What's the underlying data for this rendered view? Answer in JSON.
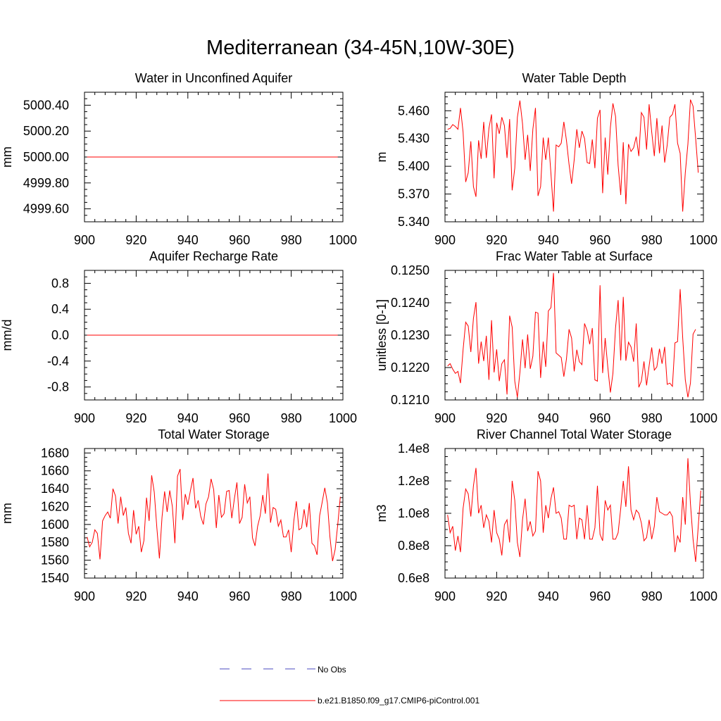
{
  "title": "Mediterranean (34-45N,10W-30E)",
  "colors": {
    "series": "#ff0000",
    "obs": "#4a4ac0",
    "axis": "#000000"
  },
  "legend": {
    "entries": [
      {
        "label": "No Obs",
        "style": "dashed"
      },
      {
        "label": "b.e21.B1850.f09_g17.CMIP6-piControl.001",
        "style": "solid"
      }
    ]
  },
  "chart_data": [
    {
      "type": "line",
      "title": "Water in Unconfined Aquifer",
      "ylabel": "mm",
      "xlim": [
        900,
        1000
      ],
      "ylim": [
        4999.5,
        5000.5
      ],
      "xticks": [
        900,
        920,
        940,
        960,
        980,
        1000
      ],
      "xtick_labels": [
        "900",
        "920",
        "940",
        "960",
        "980",
        "1000"
      ],
      "yticks": [
        4999.6,
        4999.8,
        5000.0,
        5000.2,
        5000.4
      ],
      "ytick_labels": [
        "4999.60",
        "4999.80",
        "5000.00",
        "5000.20",
        "5000.40"
      ],
      "x": [
        901,
        998
      ],
      "values": [
        5000.0,
        5000.0
      ]
    },
    {
      "type": "line",
      "title": "Water Table Depth",
      "ylabel": "m",
      "xlim": [
        900,
        1000
      ],
      "ylim": [
        5.34,
        5.48
      ],
      "xticks": [
        900,
        920,
        940,
        960,
        980,
        1000
      ],
      "xtick_labels": [
        "900",
        "920",
        "940",
        "960",
        "980",
        "1000"
      ],
      "yticks": [
        5.34,
        5.37,
        5.4,
        5.43,
        5.46
      ],
      "ytick_labels": [
        "5.340",
        "5.370",
        "5.400",
        "5.430",
        "5.460"
      ],
      "x_start": 901,
      "values": [
        5.44,
        5.441,
        5.445,
        5.443,
        5.44,
        5.463,
        5.437,
        5.383,
        5.393,
        5.427,
        5.378,
        5.367,
        5.428,
        5.408,
        5.448,
        5.409,
        5.441,
        5.456,
        5.387,
        5.447,
        5.435,
        5.453,
        5.444,
        5.409,
        5.451,
        5.374,
        5.398,
        5.453,
        5.471,
        5.446,
        5.407,
        5.434,
        5.395,
        5.44,
        5.463,
        5.368,
        5.378,
        5.431,
        5.407,
        5.431,
        5.392,
        5.351,
        5.423,
        5.421,
        5.425,
        5.448,
        5.428,
        5.402,
        5.381,
        5.407,
        5.44,
        5.42,
        5.438,
        5.43,
        5.404,
        5.403,
        5.429,
        5.398,
        5.452,
        5.461,
        5.371,
        5.431,
        5.391,
        5.442,
        5.468,
        5.454,
        5.401,
        5.369,
        5.426,
        5.359,
        5.424,
        5.416,
        5.42,
        5.432,
        5.411,
        5.458,
        5.453,
        5.418,
        5.467,
        5.437,
        5.411,
        5.452,
        5.414,
        5.444,
        5.404,
        5.423,
        5.453,
        5.456,
        5.467,
        5.425,
        5.414,
        5.351,
        5.393,
        5.424,
        5.472,
        5.465,
        5.43,
        5.393
      ]
    },
    {
      "type": "line",
      "title": "Aquifer Recharge Rate",
      "ylabel": "mm/d",
      "xlim": [
        900,
        1000
      ],
      "ylim": [
        -1.0,
        1.0
      ],
      "xticks": [
        900,
        920,
        940,
        960,
        980,
        1000
      ],
      "xtick_labels": [
        "900",
        "920",
        "940",
        "960",
        "980",
        "1000"
      ],
      "yticks": [
        -0.8,
        -0.4,
        0.0,
        0.4,
        0.8
      ],
      "ytick_labels": [
        "-0.8",
        "-0.4",
        "0.0",
        "0.4",
        "0.8"
      ],
      "x": [
        901,
        998
      ],
      "values": [
        0.0,
        0.0
      ]
    },
    {
      "type": "line",
      "title": "Frac Water Table at Surface",
      "ylabel": "unitless [0-1]",
      "xlim": [
        900,
        1000
      ],
      "ylim": [
        0.121,
        0.125
      ],
      "xticks": [
        900,
        920,
        940,
        960,
        980,
        1000
      ],
      "xtick_labels": [
        "900",
        "920",
        "940",
        "960",
        "980",
        "1000"
      ],
      "yticks": [
        0.121,
        0.122,
        0.123,
        0.124,
        0.125
      ],
      "ytick_labels": [
        "0.1210",
        "0.1220",
        "0.1230",
        "0.1240",
        "0.1250"
      ],
      "x_start": 901,
      "values": [
        0.12205,
        0.12212,
        0.12195,
        0.12182,
        0.12188,
        0.12152,
        0.12255,
        0.1234,
        0.12328,
        0.12248,
        0.12352,
        0.12402,
        0.12212,
        0.1228,
        0.1222,
        0.12298,
        0.12162,
        0.12346,
        0.12185,
        0.12256,
        0.12158,
        0.12212,
        0.12224,
        0.12117,
        0.1236,
        0.12325,
        0.12158,
        0.12108,
        0.12185,
        0.12287,
        0.12198,
        0.12302,
        0.12196,
        0.12235,
        0.12371,
        0.12368,
        0.12168,
        0.1228,
        0.12202,
        0.12375,
        0.12385,
        0.12492,
        0.12245,
        0.12238,
        0.12231,
        0.12172,
        0.12226,
        0.12318,
        0.12291,
        0.12188,
        0.12255,
        0.12218,
        0.12209,
        0.12336,
        0.12314,
        0.12272,
        0.12322,
        0.12162,
        0.12158,
        0.12454,
        0.12183,
        0.12291,
        0.12202,
        0.12123,
        0.12182,
        0.12322,
        0.12408,
        0.12222,
        0.12418,
        0.12221,
        0.12278,
        0.12264,
        0.12218,
        0.12336,
        0.12139,
        0.12158,
        0.12219,
        0.12145,
        0.12205,
        0.12262,
        0.12192,
        0.12202,
        0.12258,
        0.12212,
        0.12264,
        0.12148,
        0.12152,
        0.12142,
        0.12276,
        0.1228,
        0.12442,
        0.12292,
        0.12162,
        0.12108,
        0.12152,
        0.12303,
        0.12318
      ]
    },
    {
      "type": "line",
      "title": "Total Water Storage",
      "ylabel": "mm",
      "xlim": [
        900,
        1000
      ],
      "ylim": [
        1540,
        1685
      ],
      "xticks": [
        900,
        920,
        940,
        960,
        980,
        1000
      ],
      "xtick_labels": [
        "900",
        "920",
        "940",
        "960",
        "980",
        "1000"
      ],
      "yticks": [
        1540,
        1560,
        1580,
        1600,
        1620,
        1640,
        1660,
        1680
      ],
      "ytick_labels": [
        "1540",
        "1560",
        "1580",
        "1600",
        "1620",
        "1640",
        "1660",
        "1680"
      ],
      "x_start": 901,
      "values": [
        1586,
        1575,
        1580,
        1594,
        1590,
        1561,
        1604,
        1610,
        1614,
        1607,
        1640,
        1632,
        1601,
        1631,
        1610,
        1619,
        1590,
        1579,
        1616,
        1589,
        1598,
        1569,
        1582,
        1630,
        1604,
        1655,
        1636,
        1596,
        1562,
        1608,
        1637,
        1614,
        1638,
        1620,
        1579,
        1654,
        1662,
        1605,
        1634,
        1622,
        1638,
        1652,
        1618,
        1627,
        1609,
        1600,
        1623,
        1631,
        1651,
        1639,
        1596,
        1633,
        1608,
        1612,
        1637,
        1638,
        1607,
        1629,
        1647,
        1601,
        1608,
        1645,
        1624,
        1631,
        1585,
        1576,
        1598,
        1610,
        1633,
        1612,
        1657,
        1602,
        1619,
        1617,
        1598,
        1605,
        1586,
        1586,
        1594,
        1569,
        1604,
        1626,
        1594,
        1596,
        1617,
        1597,
        1624,
        1579,
        1576,
        1566,
        1610,
        1625,
        1641,
        1624,
        1586,
        1559,
        1572,
        1600,
        1631
      ]
    },
    {
      "type": "line",
      "title": "River Channel Total Water Storage",
      "ylabel": "m3",
      "xlim": [
        900,
        1000
      ],
      "ylim": [
        60000000.0,
        140000000.0
      ],
      "xticks": [
        900,
        920,
        940,
        960,
        980,
        1000
      ],
      "xtick_labels": [
        "900",
        "920",
        "940",
        "960",
        "980",
        "1000"
      ],
      "yticks": [
        60000000.0,
        80000000.0,
        100000000.0,
        120000000.0,
        140000000.0
      ],
      "ytick_labels": [
        "0.6e8",
        "0.8e8",
        "1.0e8",
        "1.2e8",
        "1.4e8"
      ],
      "x_start": 901,
      "values": [
        99000000.0,
        88000000.0,
        92000000.0,
        77000000.0,
        86000000.0,
        76000000.0,
        103000000.0,
        115000000.0,
        112000000.0,
        98000000.0,
        117000000.0,
        128000000.0,
        100000000.0,
        105000000.0,
        91000000.0,
        99000000.0,
        95000000.0,
        82000000.0,
        102000000.0,
        88000000.0,
        84000000.0,
        74000000.0,
        93000000.0,
        96000000.0,
        82000000.0,
        120000000.0,
        108000000.0,
        82000000.0,
        73000000.0,
        96000000.0,
        109000000.0,
        89000000.0,
        95000000.0,
        86000000.0,
        89000000.0,
        126000000.0,
        120000000.0,
        88000000.0,
        105000000.0,
        97000000.0,
        109000000.0,
        116000000.0,
        100000000.0,
        101000000.0,
        97000000.0,
        84000000.0,
        84000000.0,
        105000000.0,
        104000000.0,
        105000000.0,
        84000000.0,
        97000000.0,
        96000000.0,
        84000000.0,
        105000000.0,
        84000000.0,
        84000000.0,
        91000000.0,
        117000000.0,
        87000000.0,
        83000000.0,
        108000000.0,
        102000000.0,
        105000000.0,
        84000000.0,
        84000000.0,
        88000000.0,
        103000000.0,
        120000000.0,
        104000000.0,
        129000000.0,
        102000000.0,
        96000000.0,
        102000000.0,
        100000000.0,
        94000000.0,
        83000000.0,
        85000000.0,
        96000000.0,
        84000000.0,
        92000000.0,
        110000000.0,
        101000000.0,
        100000000.0,
        99000000.0,
        99000000.0,
        101000000.0,
        98000000.0,
        76000000.0,
        86000000.0,
        82000000.0,
        110000000.0,
        93000000.0,
        134000000.0,
        106000000.0,
        84000000.0,
        70000000.0,
        92000000.0,
        114000000.0
      ]
    }
  ]
}
